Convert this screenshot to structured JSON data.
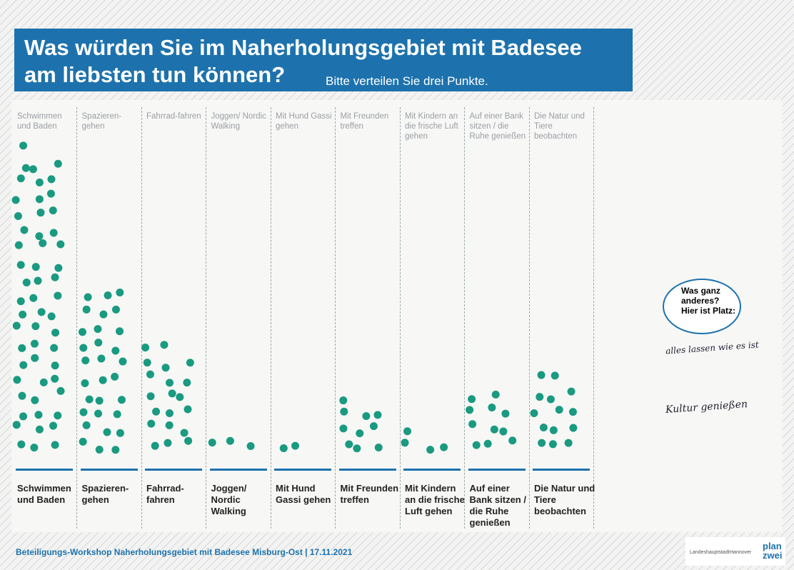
{
  "header": {
    "title": "Was würden Sie im Naherholungsgebiet mit Badesee\nam liebsten tun können?",
    "subtitle": "Bitte verteilen Sie drei Punkte."
  },
  "columns": [
    {
      "label": "Schwimmen und Baden",
      "dots": 55
    },
    {
      "label": "Spazieren-gehen",
      "dots": 30
    },
    {
      "label": "Fahrrad-fahren",
      "dots": 20
    },
    {
      "label": "Joggen/ Nordic Walking",
      "dots": 3
    },
    {
      "label": "Mit Hund Gassi gehen",
      "dots": 2
    },
    {
      "label": "Mit Freunden treffen",
      "dots": 10
    },
    {
      "label": "Mit Kindern an die frische Luft gehen",
      "dots": 4
    },
    {
      "label": "Auf einer Bank sitzen / die Ruhe genießen",
      "dots": 11
    },
    {
      "label": "Die Natur und Tiere beobachten",
      "dots": 14
    }
  ],
  "other": {
    "prompt": "Was ganz anderes? Hier ist Platz:",
    "notes": [
      "alles lassen wie es ist",
      "Kultur genießen"
    ]
  },
  "footer": {
    "text": "Beteiligungs-Workshop Naherholungsgebiet mit Badesee Misburg-Ost | 17.11.2021",
    "logos": [
      "Landeshauptstadt",
      "Hannover",
      "plan zwei"
    ]
  }
}
